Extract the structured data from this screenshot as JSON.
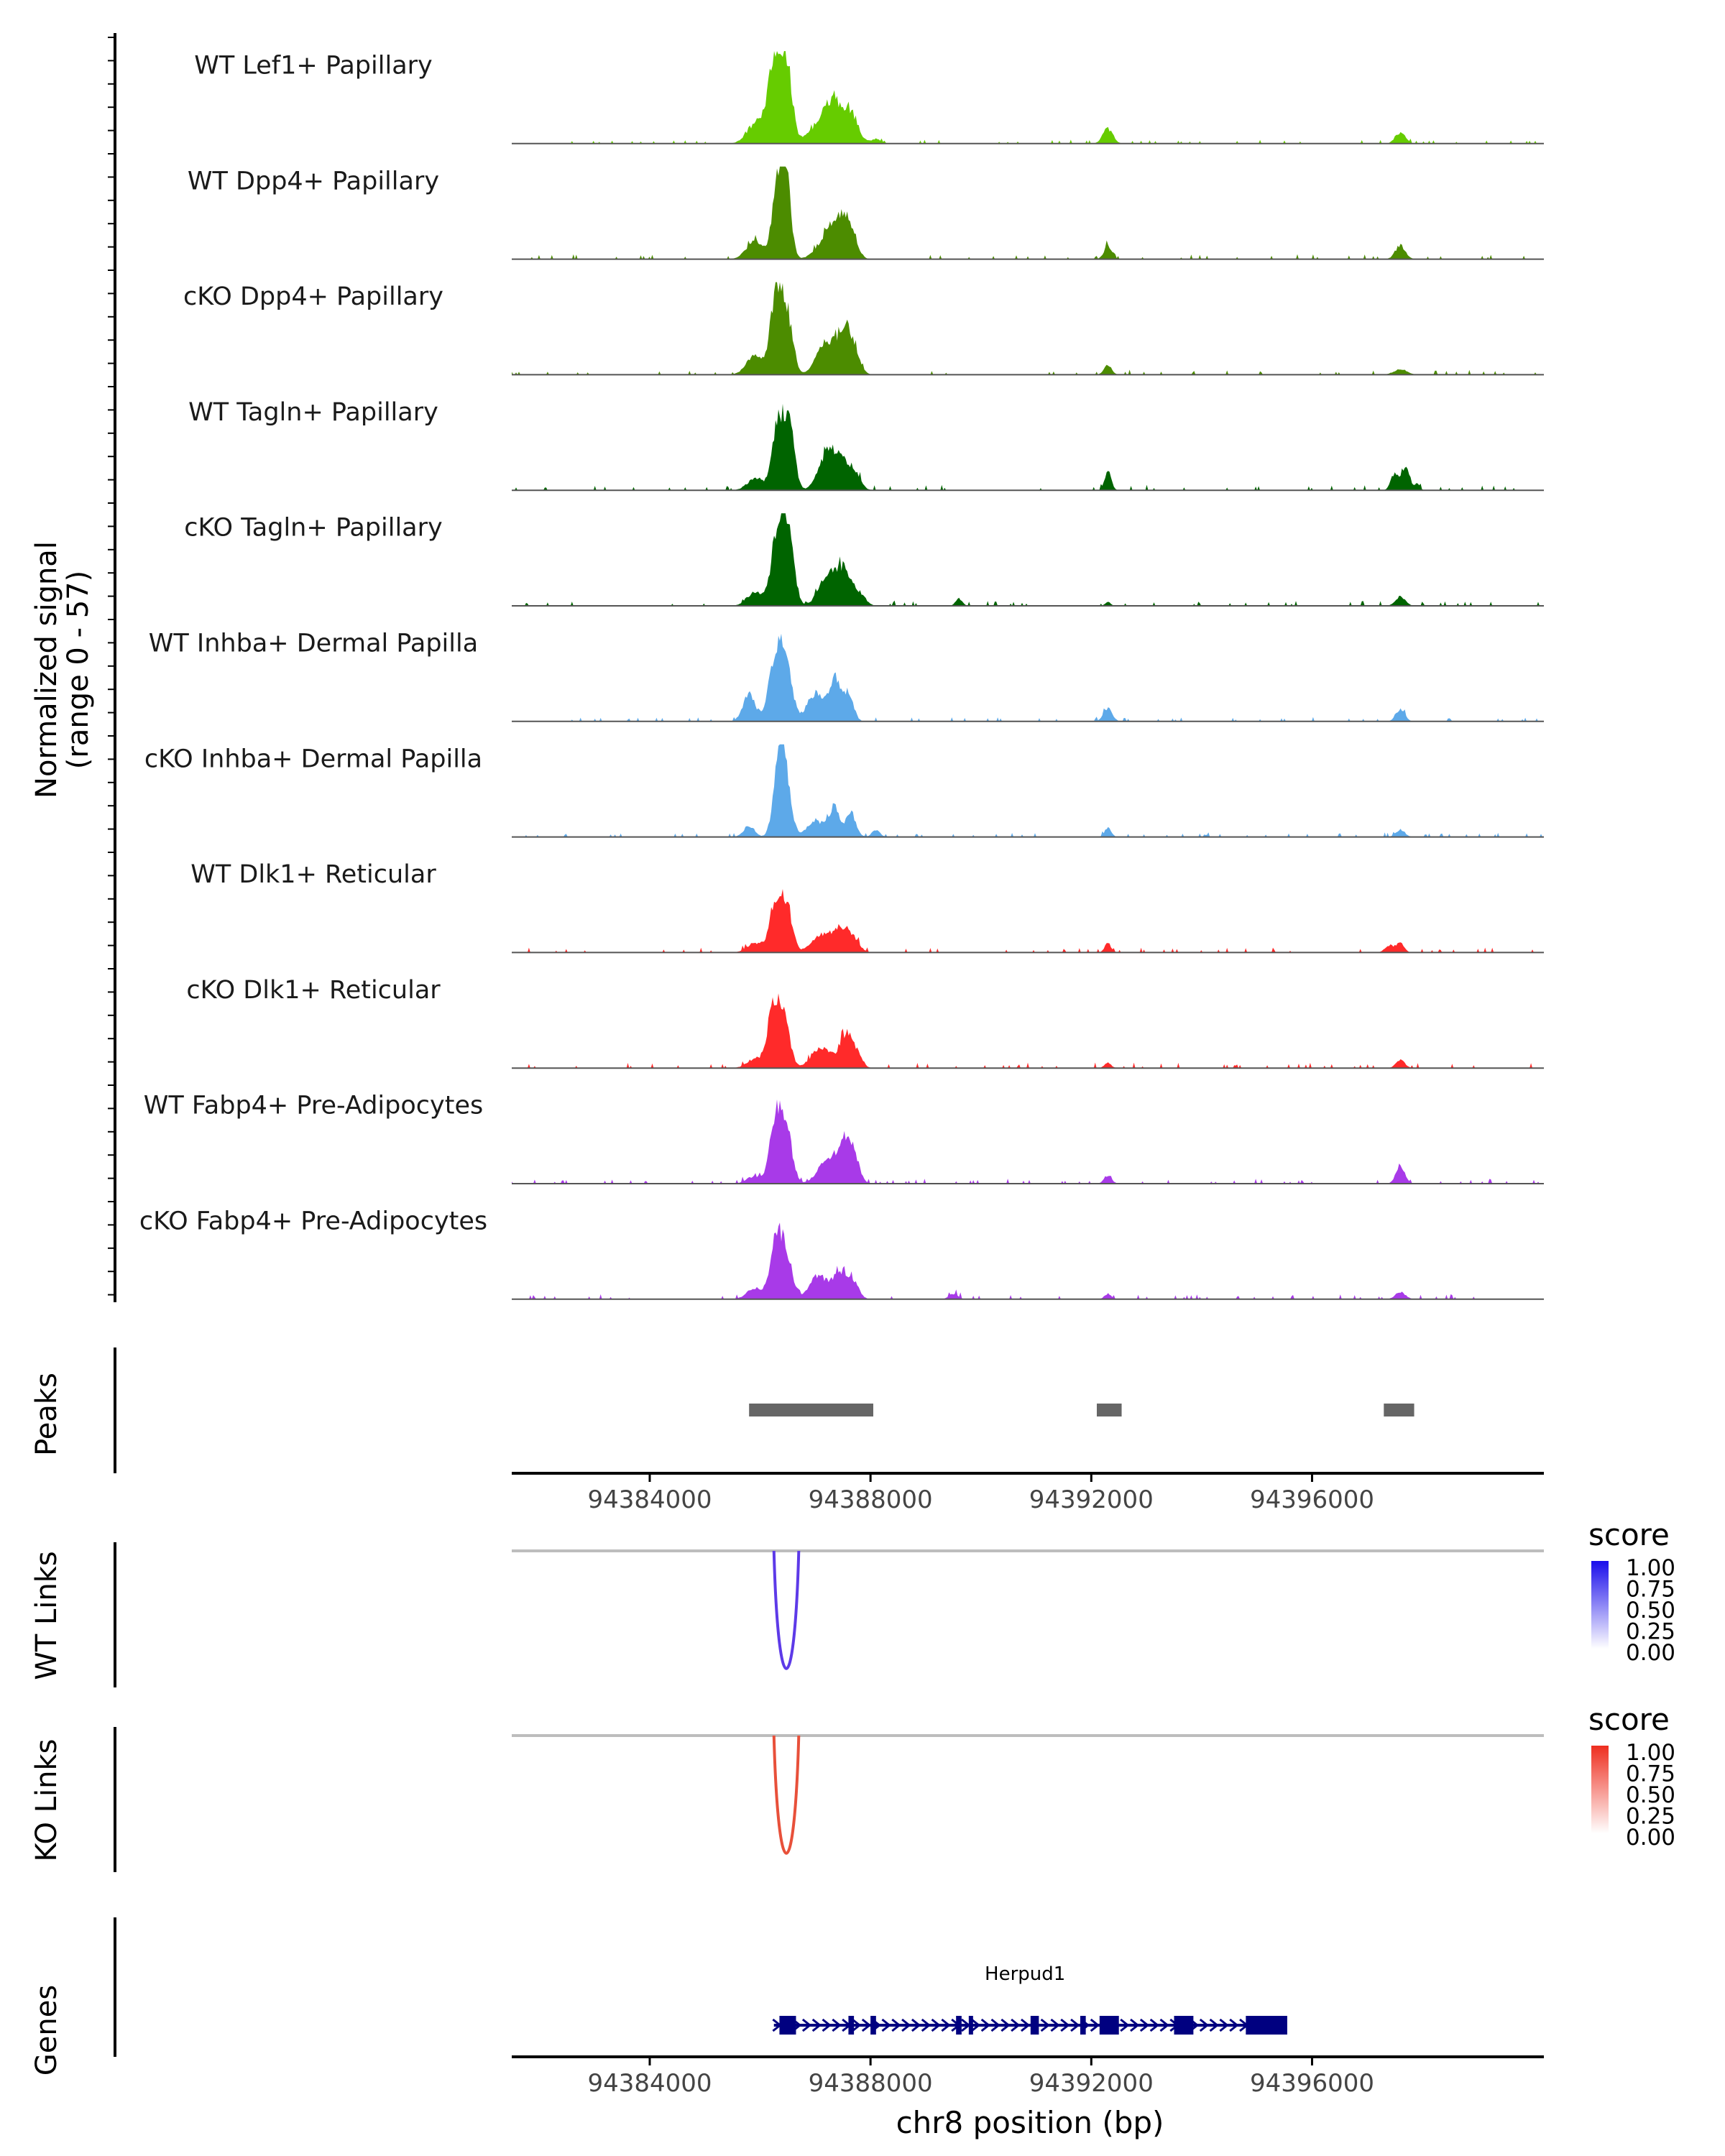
{
  "chart_data": {
    "type": "area",
    "genome_track": true,
    "chromosome": "chr8",
    "region": [
      94381500,
      94400200
    ],
    "xlabel": "chr8 position (bp)",
    "x_ticks": [
      "94384000",
      "94388000",
      "94392000",
      "94396000"
    ],
    "x_tick_values": [
      94384000,
      94388000,
      94392000,
      94396000
    ],
    "coverage_ylabel": "Normalized signal",
    "coverage_range": "(range 0 - 57)",
    "ylim": [
      0,
      57
    ],
    "tracks": [
      {
        "name": "WT Lef1+ Papillary",
        "color": "#66CC00",
        "profile": "p_lef1"
      },
      {
        "name": "WT Dpp4+ Papillary",
        "color": "#4C8C00",
        "profile": "p_dpp4"
      },
      {
        "name": "cKO Dpp4+ Papillary",
        "color": "#4C8C00",
        "profile": "p_dpp4k"
      },
      {
        "name": "WT Tagln+ Papillary",
        "color": "#006400",
        "profile": "p_tagln"
      },
      {
        "name": "cKO Tagln+ Papillary",
        "color": "#006400",
        "profile": "p_taglnk"
      },
      {
        "name": "WT Inhba+ Dermal Papilla",
        "color": "#5DA9E9",
        "profile": "p_inhba"
      },
      {
        "name": "cKO Inhba+ Dermal Papilla",
        "color": "#5DA9E9",
        "profile": "p_inhbak"
      },
      {
        "name": "WT Dlk1+ Reticular",
        "color": "#FF2A2A",
        "profile": "p_dlk1"
      },
      {
        "name": "cKO Dlk1+ Reticular",
        "color": "#FF2A2A",
        "profile": "p_dlk1k"
      },
      {
        "name": "WT Fabp4+ Pre-Adipocytes",
        "color": "#A83AE8",
        "profile": "p_fabp4"
      },
      {
        "name": "cKO Fabp4+ Pre-Adipocytes",
        "color": "#A83AE8",
        "profile": "p_fabp4k"
      }
    ],
    "profiles": {
      "p_lef1": {
        "baseline": 0.4,
        "peaks": [
          [
            94386300,
            0.93,
            150
          ],
          [
            94386500,
            0.55,
            90
          ],
          [
            94385900,
            0.2,
            150
          ],
          [
            94387100,
            0.2,
            220
          ],
          [
            94387350,
            0.35,
            160
          ],
          [
            94387650,
            0.3,
            130
          ],
          [
            94388100,
            0.05,
            90
          ],
          [
            94392300,
            0.16,
            90
          ],
          [
            94397600,
            0.12,
            90
          ]
        ]
      },
      "p_dpp4": {
        "baseline": 0.6,
        "peaks": [
          [
            94386350,
            0.95,
            110
          ],
          [
            94386500,
            0.5,
            80
          ],
          [
            94385900,
            0.2,
            150
          ],
          [
            94387200,
            0.22,
            180
          ],
          [
            94387450,
            0.32,
            150
          ],
          [
            94387650,
            0.25,
            110
          ],
          [
            94392300,
            0.14,
            70
          ],
          [
            94397600,
            0.15,
            90
          ]
        ]
      },
      "p_dpp4k": {
        "baseline": 0.6,
        "peaks": [
          [
            94386300,
            0.9,
            110
          ],
          [
            94386500,
            0.55,
            100
          ],
          [
            94385900,
            0.2,
            150
          ],
          [
            94387200,
            0.35,
            170
          ],
          [
            94387550,
            0.5,
            130
          ],
          [
            94387750,
            0.1,
            100
          ],
          [
            94392300,
            0.1,
            70
          ],
          [
            94397600,
            0.06,
            120
          ]
        ]
      },
      "p_tagln": {
        "baseline": 0.8,
        "peaks": [
          [
            94386350,
            0.8,
            120
          ],
          [
            94386550,
            0.5,
            90
          ],
          [
            94385900,
            0.12,
            140
          ],
          [
            94387200,
            0.38,
            150
          ],
          [
            94387450,
            0.28,
            130
          ],
          [
            94387700,
            0.2,
            110
          ],
          [
            94392300,
            0.2,
            60
          ],
          [
            94397500,
            0.18,
            70
          ],
          [
            94397700,
            0.25,
            70
          ],
          [
            94397900,
            0.07,
            50
          ]
        ]
      },
      "p_taglnk": {
        "baseline": 0.7,
        "peaks": [
          [
            94386350,
            0.92,
            130
          ],
          [
            94386550,
            0.5,
            90
          ],
          [
            94385900,
            0.14,
            140
          ],
          [
            94387200,
            0.3,
            150
          ],
          [
            94387500,
            0.38,
            140
          ],
          [
            94387800,
            0.12,
            110
          ],
          [
            94389600,
            0.08,
            60
          ],
          [
            94392300,
            0.04,
            50
          ],
          [
            94397600,
            0.1,
            90
          ]
        ]
      },
      "p_inhba": {
        "baseline": 0.5,
        "peaks": [
          [
            94386300,
            0.78,
            130
          ],
          [
            94386500,
            0.45,
            100
          ],
          [
            94385800,
            0.3,
            110
          ],
          [
            94387000,
            0.3,
            150
          ],
          [
            94387350,
            0.45,
            100
          ],
          [
            94387600,
            0.3,
            90
          ],
          [
            94392300,
            0.14,
            80
          ],
          [
            94397600,
            0.13,
            80
          ]
        ]
      },
      "p_inhbak": {
        "baseline": 0.5,
        "peaks": [
          [
            94386350,
            0.9,
            100
          ],
          [
            94386500,
            0.4,
            90
          ],
          [
            94385800,
            0.12,
            100
          ],
          [
            94387000,
            0.18,
            150
          ],
          [
            94387350,
            0.32,
            100
          ],
          [
            94387650,
            0.25,
            90
          ],
          [
            94388100,
            0.08,
            70
          ],
          [
            94392300,
            0.1,
            60
          ],
          [
            94397600,
            0.08,
            80
          ]
        ]
      },
      "p_dlk1": {
        "baseline": 0.6,
        "peaks": [
          [
            94386300,
            0.55,
            120
          ],
          [
            94386500,
            0.38,
            100
          ],
          [
            94385900,
            0.1,
            140
          ],
          [
            94387100,
            0.18,
            170
          ],
          [
            94387450,
            0.25,
            140
          ],
          [
            94387700,
            0.12,
            110
          ],
          [
            94392300,
            0.1,
            60
          ],
          [
            94397400,
            0.08,
            80
          ],
          [
            94397600,
            0.1,
            70
          ]
        ]
      },
      "p_dlk1k": {
        "baseline": 0.7,
        "peaks": [
          [
            94386250,
            0.68,
            110
          ],
          [
            94386450,
            0.45,
            100
          ],
          [
            94385900,
            0.1,
            140
          ],
          [
            94387100,
            0.22,
            170
          ],
          [
            94387550,
            0.35,
            120
          ],
          [
            94387750,
            0.12,
            100
          ],
          [
            94392300,
            0.06,
            60
          ],
          [
            94397600,
            0.09,
            80
          ]
        ]
      },
      "p_fabp4": {
        "baseline": 0.6,
        "peaks": [
          [
            94386300,
            0.8,
            110
          ],
          [
            94386500,
            0.45,
            100
          ],
          [
            94385900,
            0.08,
            140
          ],
          [
            94387200,
            0.25,
            160
          ],
          [
            94387500,
            0.42,
            110
          ],
          [
            94387700,
            0.3,
            100
          ],
          [
            94392300,
            0.08,
            70
          ],
          [
            94397600,
            0.2,
            80
          ]
        ]
      },
      "p_fabp4k": {
        "baseline": 0.6,
        "peaks": [
          [
            94386300,
            0.68,
            110
          ],
          [
            94386500,
            0.38,
            100
          ],
          [
            94385900,
            0.12,
            140
          ],
          [
            94387050,
            0.25,
            160
          ],
          [
            94387450,
            0.3,
            130
          ],
          [
            94387700,
            0.15,
            100
          ],
          [
            94389500,
            0.06,
            80
          ],
          [
            94392300,
            0.06,
            60
          ],
          [
            94397600,
            0.08,
            90
          ]
        ]
      }
    },
    "peaks_label": "Peaks",
    "peaks": [
      [
        94385800,
        94388050
      ],
      [
        94392100,
        94392550
      ],
      [
        94397300,
        94397850
      ]
    ],
    "links": [
      {
        "label": "WT Links",
        "color": "#5D3AE8",
        "start": 94386250,
        "end": 94386700,
        "depth": 1.0,
        "legend_title": "score",
        "legend_colors": [
          "#FFFFFF",
          "#1A0DEB"
        ],
        "legend_ticks": [
          "1.00",
          "0.75",
          "0.50",
          "0.25",
          "0.00"
        ]
      },
      {
        "label": "KO Links",
        "color": "#E8503A",
        "start": 94386250,
        "end": 94386700,
        "depth": 1.0,
        "legend_title": "score",
        "legend_colors": [
          "#FFFFFF",
          "#EE2E1F"
        ],
        "legend_ticks": [
          "1.00",
          "0.75",
          "0.50",
          "0.25",
          "0.00"
        ]
      }
    ],
    "genes_label": "Genes",
    "gene": {
      "name": "Herpud1",
      "color": "#000080",
      "start": 94386250,
      "end": 94395350,
      "strand": "+",
      "exons": [
        [
          94386350,
          94386650
        ],
        [
          94387600,
          94387700
        ],
        [
          94388000,
          94388100
        ],
        [
          94389550,
          94389650
        ],
        [
          94389780,
          94389850
        ],
        [
          94390900,
          94391050
        ],
        [
          94391800,
          94391900
        ],
        [
          94392150,
          94392500
        ],
        [
          94393500,
          94393850
        ],
        [
          94394800,
          94395550
        ]
      ]
    }
  }
}
